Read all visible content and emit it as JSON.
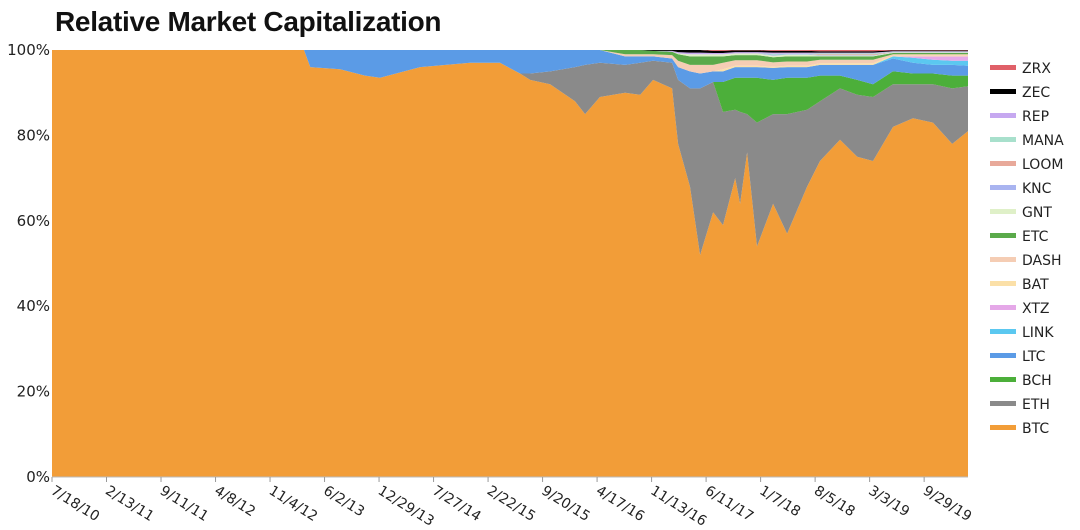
{
  "chart_data": {
    "type": "area",
    "stacked": "percent",
    "title": "Relative Market Capitalization",
    "xlabel": "",
    "ylabel": "",
    "ylim": [
      0,
      100
    ],
    "y_ticks": [
      "0%",
      "20%",
      "40%",
      "60%",
      "80%",
      "100%"
    ],
    "x_ticks": [
      "7/18/10",
      "2/13/11",
      "9/11/11",
      "4/8/12",
      "11/4/12",
      "6/2/13",
      "12/29/13",
      "7/27/14",
      "2/22/15",
      "9/20/15",
      "4/17/16",
      "11/13/16",
      "6/11/17",
      "1/7/18",
      "8/5/18",
      "3/3/19",
      "9/29/19"
    ],
    "x_range": [
      "2010-07-18",
      "2020-03-16"
    ],
    "grid": false,
    "legend_placement": "right",
    "x": [
      "2010-07-18",
      "2013-03-15",
      "2013-04-08",
      "2013-08-01",
      "2013-11-05",
      "2014-01-02",
      "2014-06-05",
      "2014-12-15",
      "2015-04-09",
      "2015-06-25",
      "2015-08-03",
      "2015-10-19",
      "2016-01-23",
      "2016-03-02",
      "2016-04-28",
      "2016-08-03",
      "2016-09-30",
      "2016-11-19",
      "2017-01-31",
      "2017-02-23",
      "2017-04-10",
      "2017-05-19",
      "2017-07-08",
      "2017-08-15",
      "2017-10-01",
      "2017-10-20",
      "2017-11-16",
      "2017-12-24",
      "2018-02-24",
      "2018-04-19",
      "2018-07-05",
      "2018-08-24",
      "2018-11-09",
      "2019-01-14",
      "2019-03-16",
      "2019-06-01",
      "2019-08-17",
      "2019-11-02",
      "2020-01-15",
      "2020-03-16"
    ],
    "series": [
      {
        "name": "BTC",
        "color": "#f29d38",
        "values": [
          100,
          100,
          96,
          95.5,
          94,
          93.5,
          96,
          97,
          97,
          94.5,
          93,
          92,
          88,
          85,
          89,
          90,
          89.5,
          93,
          91,
          78,
          68,
          52,
          62,
          59,
          70,
          64,
          76,
          54,
          64,
          57,
          68,
          74,
          79,
          75,
          74,
          82,
          84,
          83,
          78,
          81
        ]
      },
      {
        "name": "ETH",
        "color": "#8a8a8a",
        "values": [
          0,
          0,
          0,
          0,
          0,
          0,
          0,
          0,
          0,
          0,
          1.5,
          3,
          8,
          11.5,
          8,
          6.5,
          7.5,
          4.5,
          6,
          15,
          23,
          39,
          30.5,
          26.5,
          16,
          21.5,
          9,
          29,
          21,
          28,
          18,
          14,
          12,
          14.5,
          15,
          10,
          8,
          9,
          13,
          10.5
        ]
      },
      {
        "name": "BCH",
        "color": "#4caf3a",
        "values": [
          0,
          0,
          0,
          0,
          0,
          0,
          0,
          0,
          0,
          0,
          0,
          0,
          0,
          0,
          0,
          0,
          0,
          0,
          0,
          0,
          0,
          0,
          0,
          7,
          7.5,
          8,
          8.5,
          10.5,
          8,
          8.5,
          7.5,
          6,
          3,
          3.5,
          3,
          3,
          2.5,
          2.5,
          3,
          2.5
        ]
      },
      {
        "name": "LTC",
        "color": "#5b9be6",
        "values": [
          0,
          0,
          4,
          4.5,
          6,
          6.5,
          4,
          3,
          3,
          5.5,
          5.5,
          5,
          4,
          3.5,
          3,
          2,
          1.5,
          1,
          1,
          3,
          4,
          3.5,
          2.5,
          2.5,
          2.5,
          2.5,
          2.5,
          2.5,
          2.8,
          2.5,
          2.5,
          2.5,
          2.5,
          3.5,
          4.5,
          3,
          2.5,
          2,
          2.5,
          2.3
        ]
      },
      {
        "name": "LINK",
        "color": "#5bc8f0",
        "values": [
          0,
          0,
          0,
          0,
          0,
          0,
          0,
          0,
          0,
          0,
          0,
          0,
          0,
          0,
          0,
          0,
          0,
          0,
          0,
          0,
          0,
          0,
          0,
          0,
          0,
          0,
          0,
          0,
          0,
          0,
          0,
          0,
          0,
          0,
          0,
          0.5,
          1.2,
          1.2,
          1,
          1.2
        ]
      },
      {
        "name": "XTZ",
        "color": "#e5a8e8",
        "values": [
          0,
          0,
          0,
          0,
          0,
          0,
          0,
          0,
          0,
          0,
          0,
          0,
          0,
          0,
          0,
          0,
          0,
          0,
          0,
          0,
          0,
          0,
          0,
          0,
          0,
          0,
          0,
          0,
          0,
          0,
          0,
          0,
          0,
          0,
          0,
          0,
          0.3,
          0.8,
          1,
          1
        ]
      },
      {
        "name": "BAT",
        "color": "#fbe0a8",
        "values": [
          0,
          0,
          0,
          0,
          0,
          0,
          0,
          0,
          0,
          0,
          0,
          0,
          0,
          0,
          0,
          0,
          0,
          0,
          0,
          0,
          0,
          0,
          0,
          0.5,
          0.3,
          0.3,
          0.3,
          0.3,
          0.3,
          0.3,
          0.3,
          0.4,
          0.4,
          0.4,
          0.4,
          0.2,
          0.2,
          0.2,
          0.2,
          0.2
        ]
      },
      {
        "name": "DASH",
        "color": "#f5cdb4",
        "values": [
          0,
          0,
          0,
          0,
          0,
          0,
          0,
          0,
          0,
          0,
          0,
          0,
          0,
          0,
          0,
          0.5,
          0.5,
          0.5,
          0.8,
          1.5,
          1.5,
          2,
          1.5,
          1.5,
          1.3,
          1.3,
          1.3,
          1.3,
          1,
          1,
          1,
          0.8,
          0.8,
          0.8,
          0.8,
          0.3,
          0.3,
          0.3,
          0.3,
          0.3
        ]
      },
      {
        "name": "ETC",
        "color": "#5aaa4a",
        "values": [
          0,
          0,
          0,
          0,
          0,
          0,
          0,
          0,
          0,
          0,
          0,
          0,
          0,
          0,
          0,
          1,
          1,
          0.8,
          0.8,
          1.5,
          2,
          2,
          2,
          1.5,
          1.2,
          1.2,
          1.2,
          1.2,
          1.2,
          1.2,
          1.2,
          0.8,
          0.8,
          0.8,
          0.8,
          0.3,
          0.3,
          0.3,
          0.3,
          0.3
        ]
      },
      {
        "name": "GNT",
        "color": "#dff0c8",
        "values": [
          0,
          0,
          0,
          0,
          0,
          0,
          0,
          0,
          0,
          0,
          0,
          0,
          0,
          0,
          0,
          0,
          0,
          0,
          0,
          0.2,
          0.5,
          0.5,
          0.5,
          0.5,
          0.4,
          0.4,
          0.4,
          0.4,
          0.4,
          0.4,
          0.4,
          0.2,
          0.2,
          0.2,
          0.2,
          0.1,
          0.1,
          0.1,
          0.1,
          0.1
        ]
      },
      {
        "name": "KNC",
        "color": "#a9b4f0",
        "values": [
          0,
          0,
          0,
          0,
          0,
          0,
          0,
          0,
          0,
          0,
          0,
          0,
          0,
          0,
          0,
          0,
          0,
          0,
          0,
          0,
          0,
          0,
          0,
          0,
          0,
          0,
          0,
          0,
          0.2,
          0.1,
          0.1,
          0.1,
          0.1,
          0.1,
          0.1,
          0.05,
          0.05,
          0.05,
          0.05,
          0.05
        ]
      },
      {
        "name": "LOOM",
        "color": "#e8a99a",
        "values": [
          0,
          0,
          0,
          0,
          0,
          0,
          0,
          0,
          0,
          0,
          0,
          0,
          0,
          0,
          0,
          0,
          0,
          0,
          0,
          0,
          0,
          0,
          0,
          0,
          0,
          0,
          0,
          0,
          0,
          0,
          0,
          0.2,
          0.2,
          0.2,
          0.2,
          0.05,
          0.05,
          0.05,
          0.05,
          0.05
        ]
      },
      {
        "name": "MANA",
        "color": "#a8e0cc",
        "values": [
          0,
          0,
          0,
          0,
          0,
          0,
          0,
          0,
          0,
          0,
          0,
          0,
          0,
          0,
          0,
          0,
          0,
          0,
          0,
          0,
          0,
          0,
          0,
          0,
          0,
          0,
          0,
          0,
          0.2,
          0.1,
          0.1,
          0.2,
          0.2,
          0.2,
          0.2,
          0.1,
          0.1,
          0.1,
          0.1,
          0.1
        ]
      },
      {
        "name": "REP",
        "color": "#c6a8f0",
        "values": [
          0,
          0,
          0,
          0,
          0,
          0,
          0,
          0,
          0,
          0,
          0,
          0,
          0,
          0,
          0,
          0,
          0,
          0,
          0.2,
          0.3,
          0.4,
          0.4,
          0.3,
          0.3,
          0.3,
          0.3,
          0.3,
          0.3,
          0.3,
          0.3,
          0.3,
          0.2,
          0.2,
          0.2,
          0.2,
          0.1,
          0.1,
          0.1,
          0.1,
          0.1
        ]
      },
      {
        "name": "ZEC",
        "color": "#000000",
        "values": [
          0,
          0,
          0,
          0,
          0,
          0,
          0,
          0,
          0,
          0,
          0,
          0,
          0,
          0,
          0,
          0,
          0,
          0.2,
          0.2,
          0.5,
          0.6,
          0.6,
          0.5,
          0.5,
          0.4,
          0.4,
          0.4,
          0.4,
          0.4,
          0.4,
          0.4,
          0.3,
          0.3,
          0.3,
          0.3,
          0.2,
          0.2,
          0.2,
          0.2,
          0.2
        ]
      },
      {
        "name": "ZRX",
        "color": "#e06068",
        "values": [
          0,
          0,
          0,
          0,
          0,
          0,
          0,
          0,
          0,
          0,
          0,
          0,
          0,
          0,
          0,
          0,
          0,
          0,
          0,
          0,
          0,
          0,
          0.2,
          0.2,
          0.1,
          0.1,
          0.1,
          0.1,
          0.2,
          0.2,
          0.2,
          0.3,
          0.3,
          0.3,
          0.3,
          0.1,
          0.1,
          0.1,
          0.1,
          0.1
        ]
      }
    ]
  }
}
